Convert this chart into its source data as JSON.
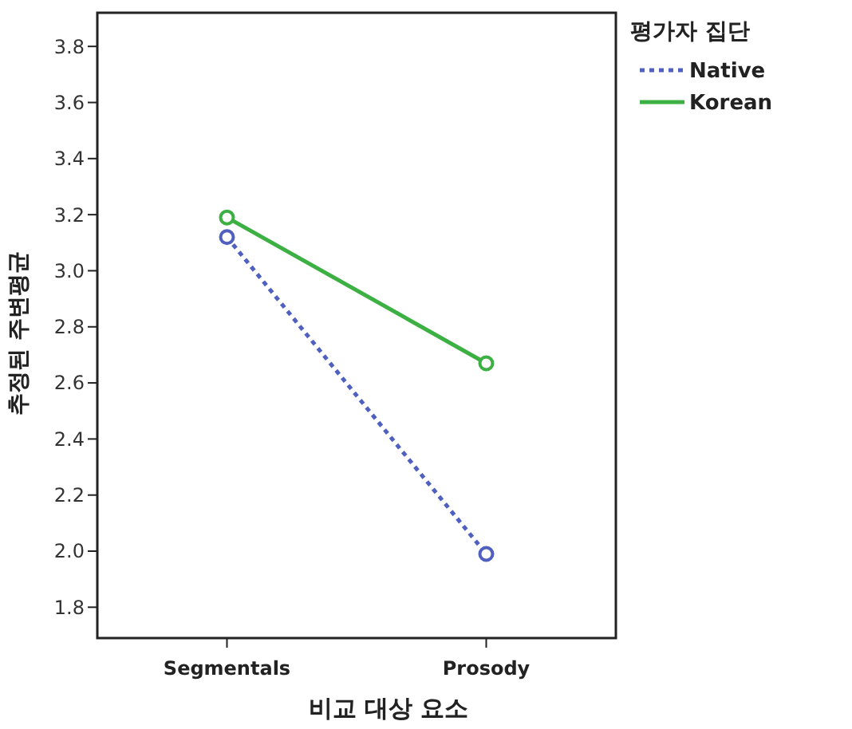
{
  "chart_data": {
    "type": "line",
    "xlabel": "비교 대상 요소",
    "ylabel": "추정된 주변평균",
    "legend_title": "평가자 집단",
    "legend": "right",
    "marker": "circle",
    "grid": false,
    "categories": [
      "Segmentals",
      "Prosody"
    ],
    "ylim": [
      1.69,
      3.92
    ],
    "yticks": [
      1.8,
      {
        "value": 2,
        "label": "2.0"
      },
      2.2,
      2.4,
      2.6,
      2.8,
      {
        "value": 3,
        "label": "3.0"
      },
      3.2,
      3.4,
      3.6,
      3.8
    ],
    "series": [
      {
        "name": "Native",
        "color": "#5060c0",
        "values": [
          3.12,
          1.99
        ],
        "line_style": "dotted"
      },
      {
        "name": "Korean",
        "color": "#3cb043",
        "values": [
          3.19,
          2.67
        ],
        "line_style": "solid"
      }
    ]
  }
}
